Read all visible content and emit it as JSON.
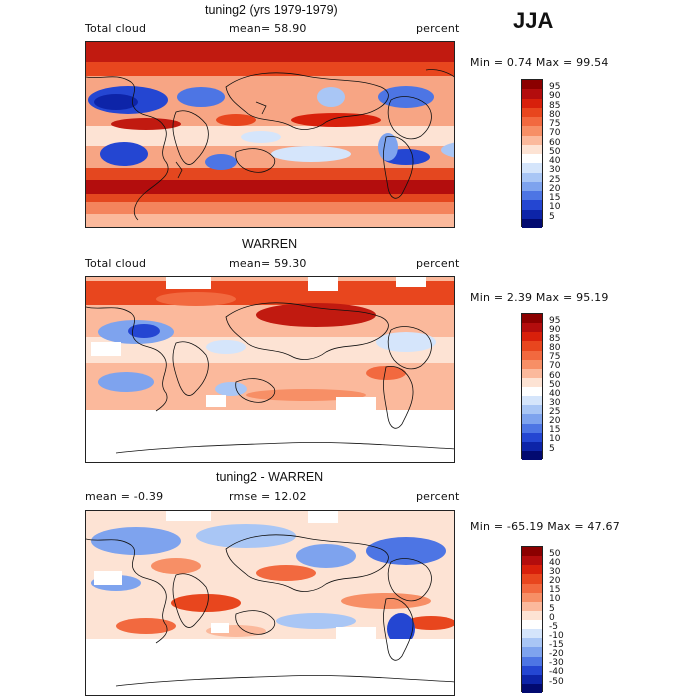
{
  "season": "JJA",
  "panels": [
    {
      "title": "tuning2 (yrs 1979-1979)",
      "left_label": "Total cloud",
      "mid_label": "mean=  58.90",
      "right_label": "percent",
      "minmax": "Min =   0.74 Max =  99.54",
      "map_kind": "model",
      "colorbar": {
        "labels": [
          "95",
          "90",
          "85",
          "80",
          "75",
          "70",
          "60",
          "50",
          "40",
          "30",
          "25",
          "20",
          "15",
          "10",
          "5"
        ],
        "colors": [
          "#8b0000",
          "#b30d0d",
          "#d8200b",
          "#e8461e",
          "#f2693f",
          "#f78f66",
          "#fbb99c",
          "#fde3d4",
          "#ffffff",
          "#d5e5fb",
          "#a9c6f5",
          "#7ea3ee",
          "#4d75e4",
          "#2446d2",
          "#0d24a8",
          "#020a70"
        ]
      }
    },
    {
      "title": "WARREN",
      "left_label": "Total cloud",
      "mid_label": "mean=  59.30",
      "right_label": "percent",
      "minmax": "Min =   2.39 Max =  95.19",
      "map_kind": "obs",
      "colorbar": {
        "labels": [
          "95",
          "90",
          "85",
          "80",
          "75",
          "70",
          "60",
          "50",
          "40",
          "30",
          "25",
          "20",
          "15",
          "10",
          "5"
        ],
        "colors": [
          "#8b0000",
          "#b30d0d",
          "#d8200b",
          "#e8461e",
          "#f2693f",
          "#f78f66",
          "#fbb99c",
          "#fde3d4",
          "#ffffff",
          "#d5e5fb",
          "#a9c6f5",
          "#7ea3ee",
          "#4d75e4",
          "#2446d2",
          "#0d24a8",
          "#020a70"
        ]
      }
    },
    {
      "title": "tuning2 - WARREN",
      "left_label": "mean =  -0.39",
      "mid_label": "rmse =  12.02",
      "right_label": "percent",
      "minmax": "Min = -65.19 Max =  47.67",
      "map_kind": "diff",
      "colorbar": {
        "labels": [
          "50",
          "40",
          "30",
          "20",
          "15",
          "10",
          "5",
          "0",
          "-5",
          "-10",
          "-15",
          "-20",
          "-30",
          "-40",
          "-50"
        ],
        "colors": [
          "#8b0000",
          "#b30d0d",
          "#d8200b",
          "#e8461e",
          "#f2693f",
          "#f78f66",
          "#fbb99c",
          "#fde3d4",
          "#ffffff",
          "#d5e5fb",
          "#a9c6f5",
          "#7ea3ee",
          "#4d75e4",
          "#2446d2",
          "#0d24a8",
          "#020a70"
        ]
      }
    }
  ]
}
